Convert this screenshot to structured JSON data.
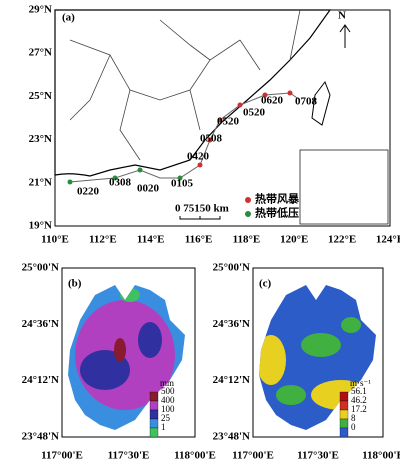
{
  "panel_a": {
    "label": "(a)",
    "north": "N",
    "lat_ticks": [
      "29°N",
      "27°N",
      "25°N",
      "23°N",
      "21°N",
      "19°N"
    ],
    "lon_ticks": [
      "110°E",
      "112°E",
      "114°E",
      "116°E",
      "118°E",
      "120°E",
      "122°E",
      "124°E"
    ],
    "track_labels": [
      "0220",
      "0308",
      "0020",
      "0105",
      "0420",
      "0508",
      "0520",
      "0520",
      "0620",
      "0708"
    ],
    "legend": [
      "热带风暴",
      "热带低压"
    ],
    "scale": "0  75150 km"
  },
  "panel_b": {
    "label": "(b)",
    "lat_ticks": [
      "25°00'N",
      "24°36'N",
      "24°12'N",
      "23°48'N"
    ],
    "lon_ticks": [
      "117°00'E",
      "117°30'E",
      "118°00'E"
    ],
    "legend_unit": "mm",
    "legend_levels": [
      "500",
      "400",
      "100",
      "25",
      "1"
    ]
  },
  "panel_c": {
    "label": "(c)",
    "lat_ticks": [
      "25°00'N",
      "24°36'N",
      "24°12'N",
      "23°48'N"
    ],
    "lon_ticks": [
      "117°00'E",
      "117°30'E",
      "118°00'E"
    ],
    "legend_unit": "m·s⁻¹",
    "legend_levels": [
      "56.1",
      "46.2",
      "17.2",
      "8",
      "0"
    ]
  }
}
